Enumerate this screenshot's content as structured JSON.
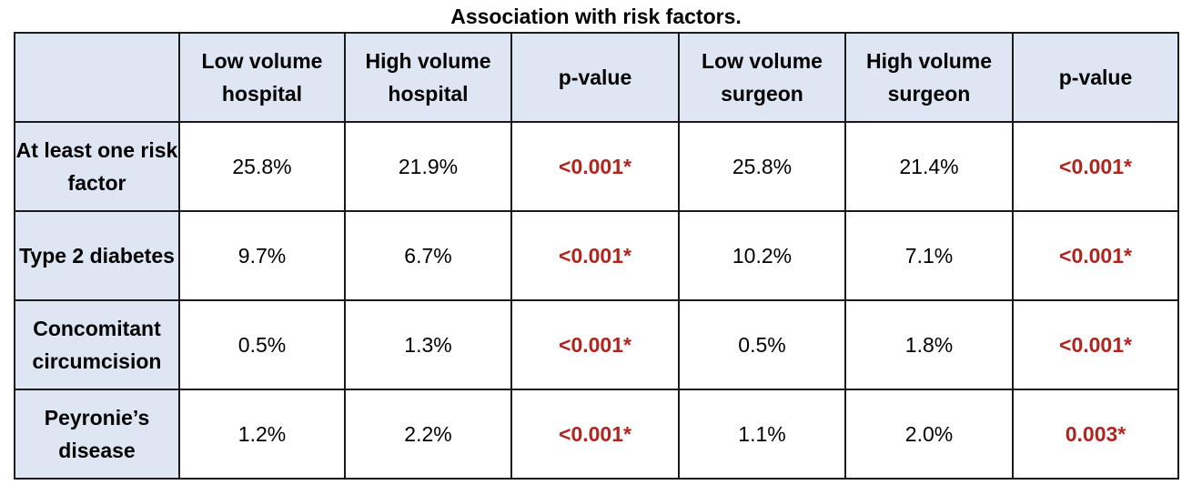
{
  "title": "Association with risk factors.",
  "colors": {
    "header_bg": "#dfe6f3",
    "pvalue_text": "#b0261f",
    "border": "#1a1a1a"
  },
  "table": {
    "columns": [
      "",
      "Low volume hospital",
      "High volume hospital",
      "p-value",
      "Low volume surgeon",
      "High volume surgeon",
      "p-value"
    ],
    "rows": [
      {
        "label": "At least one risk factor",
        "low_hospital": "25.8%",
        "high_hospital": "21.9%",
        "p_hospital": "<0.001*",
        "low_surgeon": "25.8%",
        "high_surgeon": "21.4%",
        "p_surgeon": "<0.001*"
      },
      {
        "label": "Type 2 diabetes",
        "low_hospital": "9.7%",
        "high_hospital": "6.7%",
        "p_hospital": "<0.001*",
        "low_surgeon": "10.2%",
        "high_surgeon": "7.1%",
        "p_surgeon": "<0.001*"
      },
      {
        "label": "Concomitant circumcision",
        "low_hospital": "0.5%",
        "high_hospital": "1.3%",
        "p_hospital": "<0.001*",
        "low_surgeon": "0.5%",
        "high_surgeon": "1.8%",
        "p_surgeon": "<0.001*"
      },
      {
        "label": "Peyronie’s disease",
        "low_hospital": "1.2%",
        "high_hospital": "2.2%",
        "p_hospital": "<0.001*",
        "low_surgeon": "1.1%",
        "high_surgeon": "2.0%",
        "p_surgeon": "0.003*"
      }
    ]
  }
}
